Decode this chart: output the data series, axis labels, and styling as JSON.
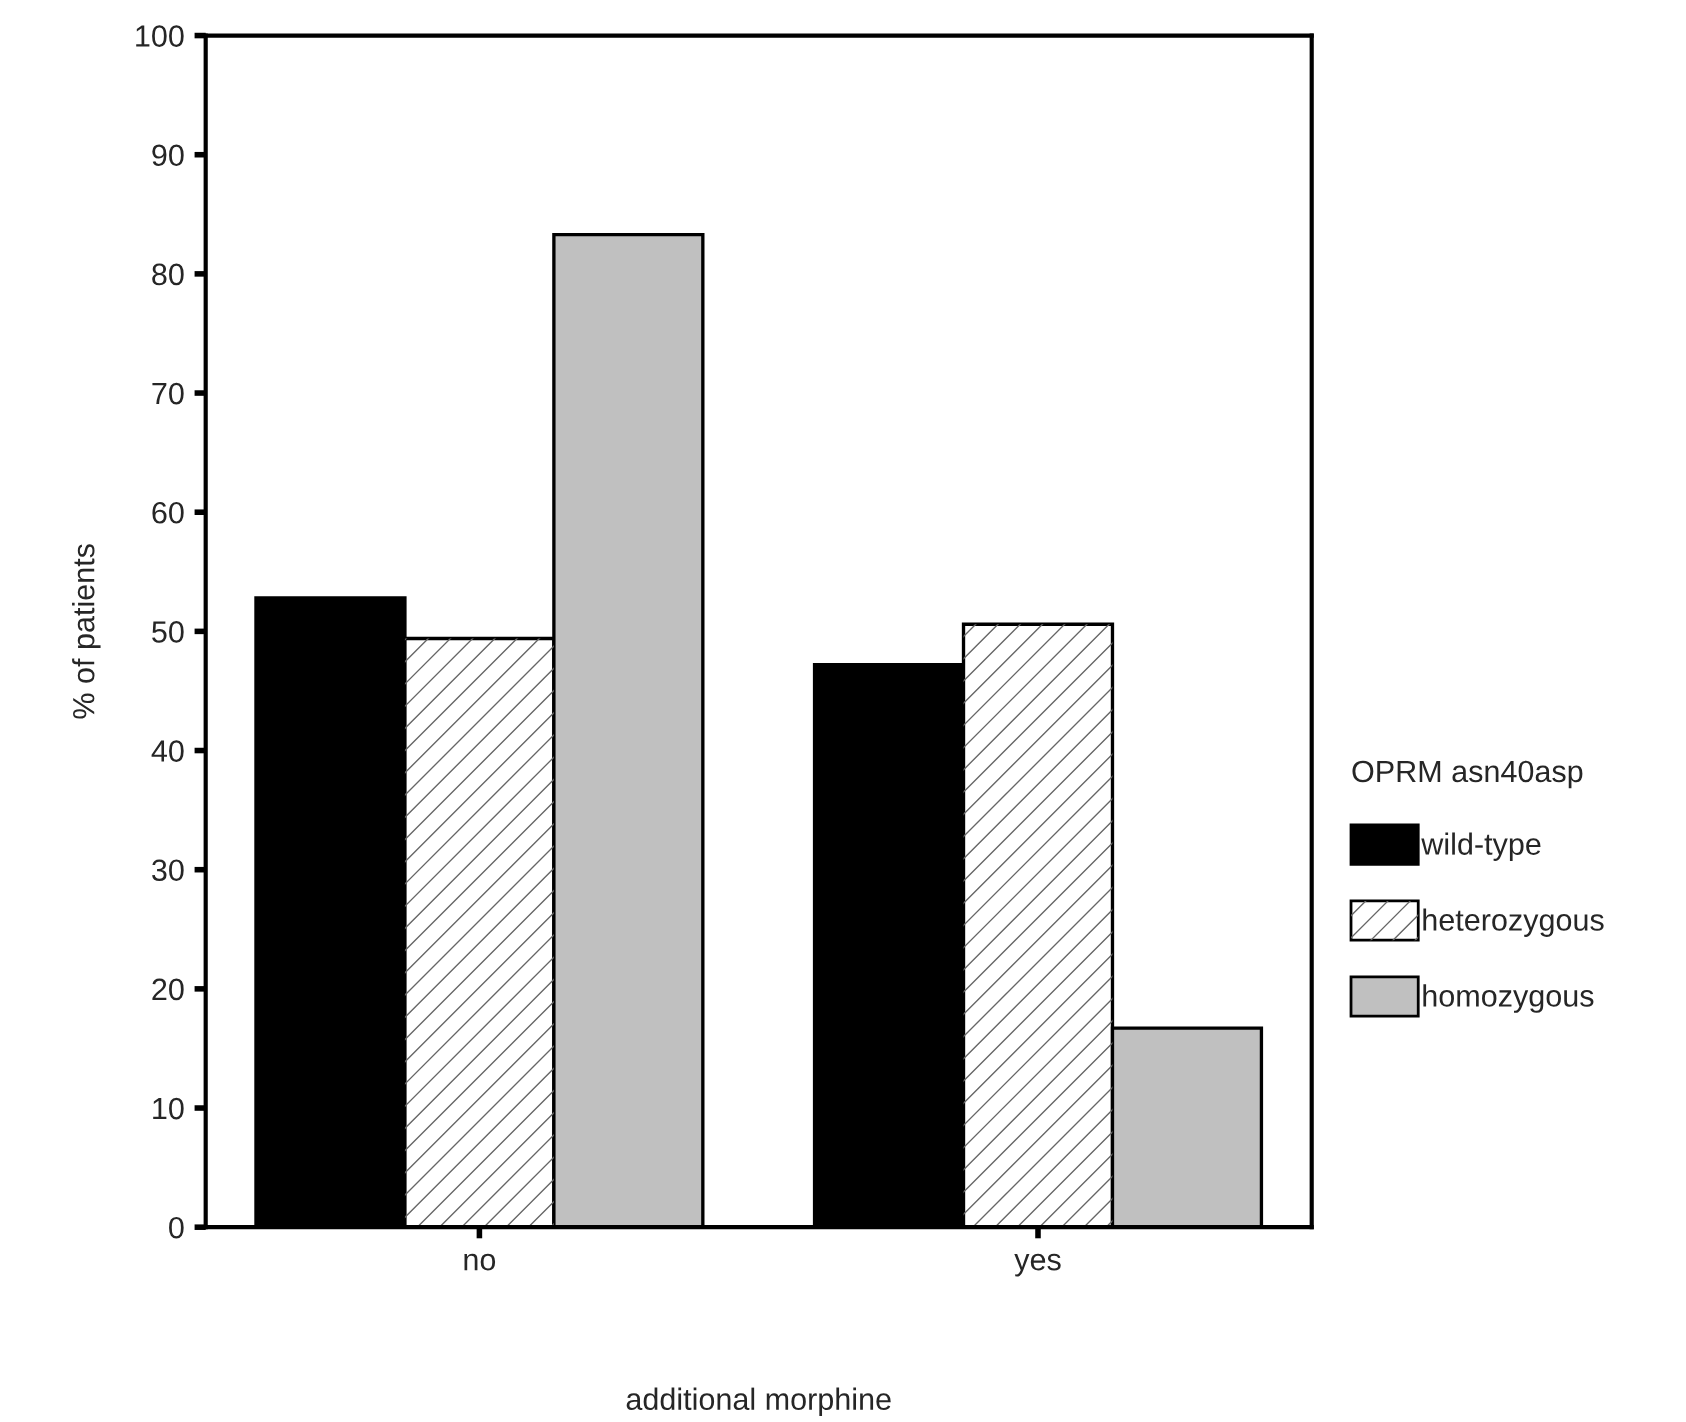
{
  "chart_data": {
    "type": "bar",
    "xlabel": "additional morphine",
    "ylabel": "% of patients",
    "legend_title": "OPRM asn40asp",
    "categories": [
      "no",
      "yes"
    ],
    "series": [
      {
        "name": "wild-type",
        "color": "#000000",
        "values": [
          52.8,
          47.2
        ]
      },
      {
        "name": "heterozygous",
        "color": "#ffffff",
        "values": [
          49.4,
          50.6
        ]
      },
      {
        "name": "homozygous",
        "color": "#c0c0c0",
        "values": [
          83.3,
          16.7
        ]
      }
    ],
    "ylim": [
      0,
      100
    ],
    "yticks": [
      0,
      10,
      20,
      30,
      40,
      50,
      60,
      70,
      80,
      90,
      100
    ],
    "grid": false,
    "legend": "right"
  }
}
